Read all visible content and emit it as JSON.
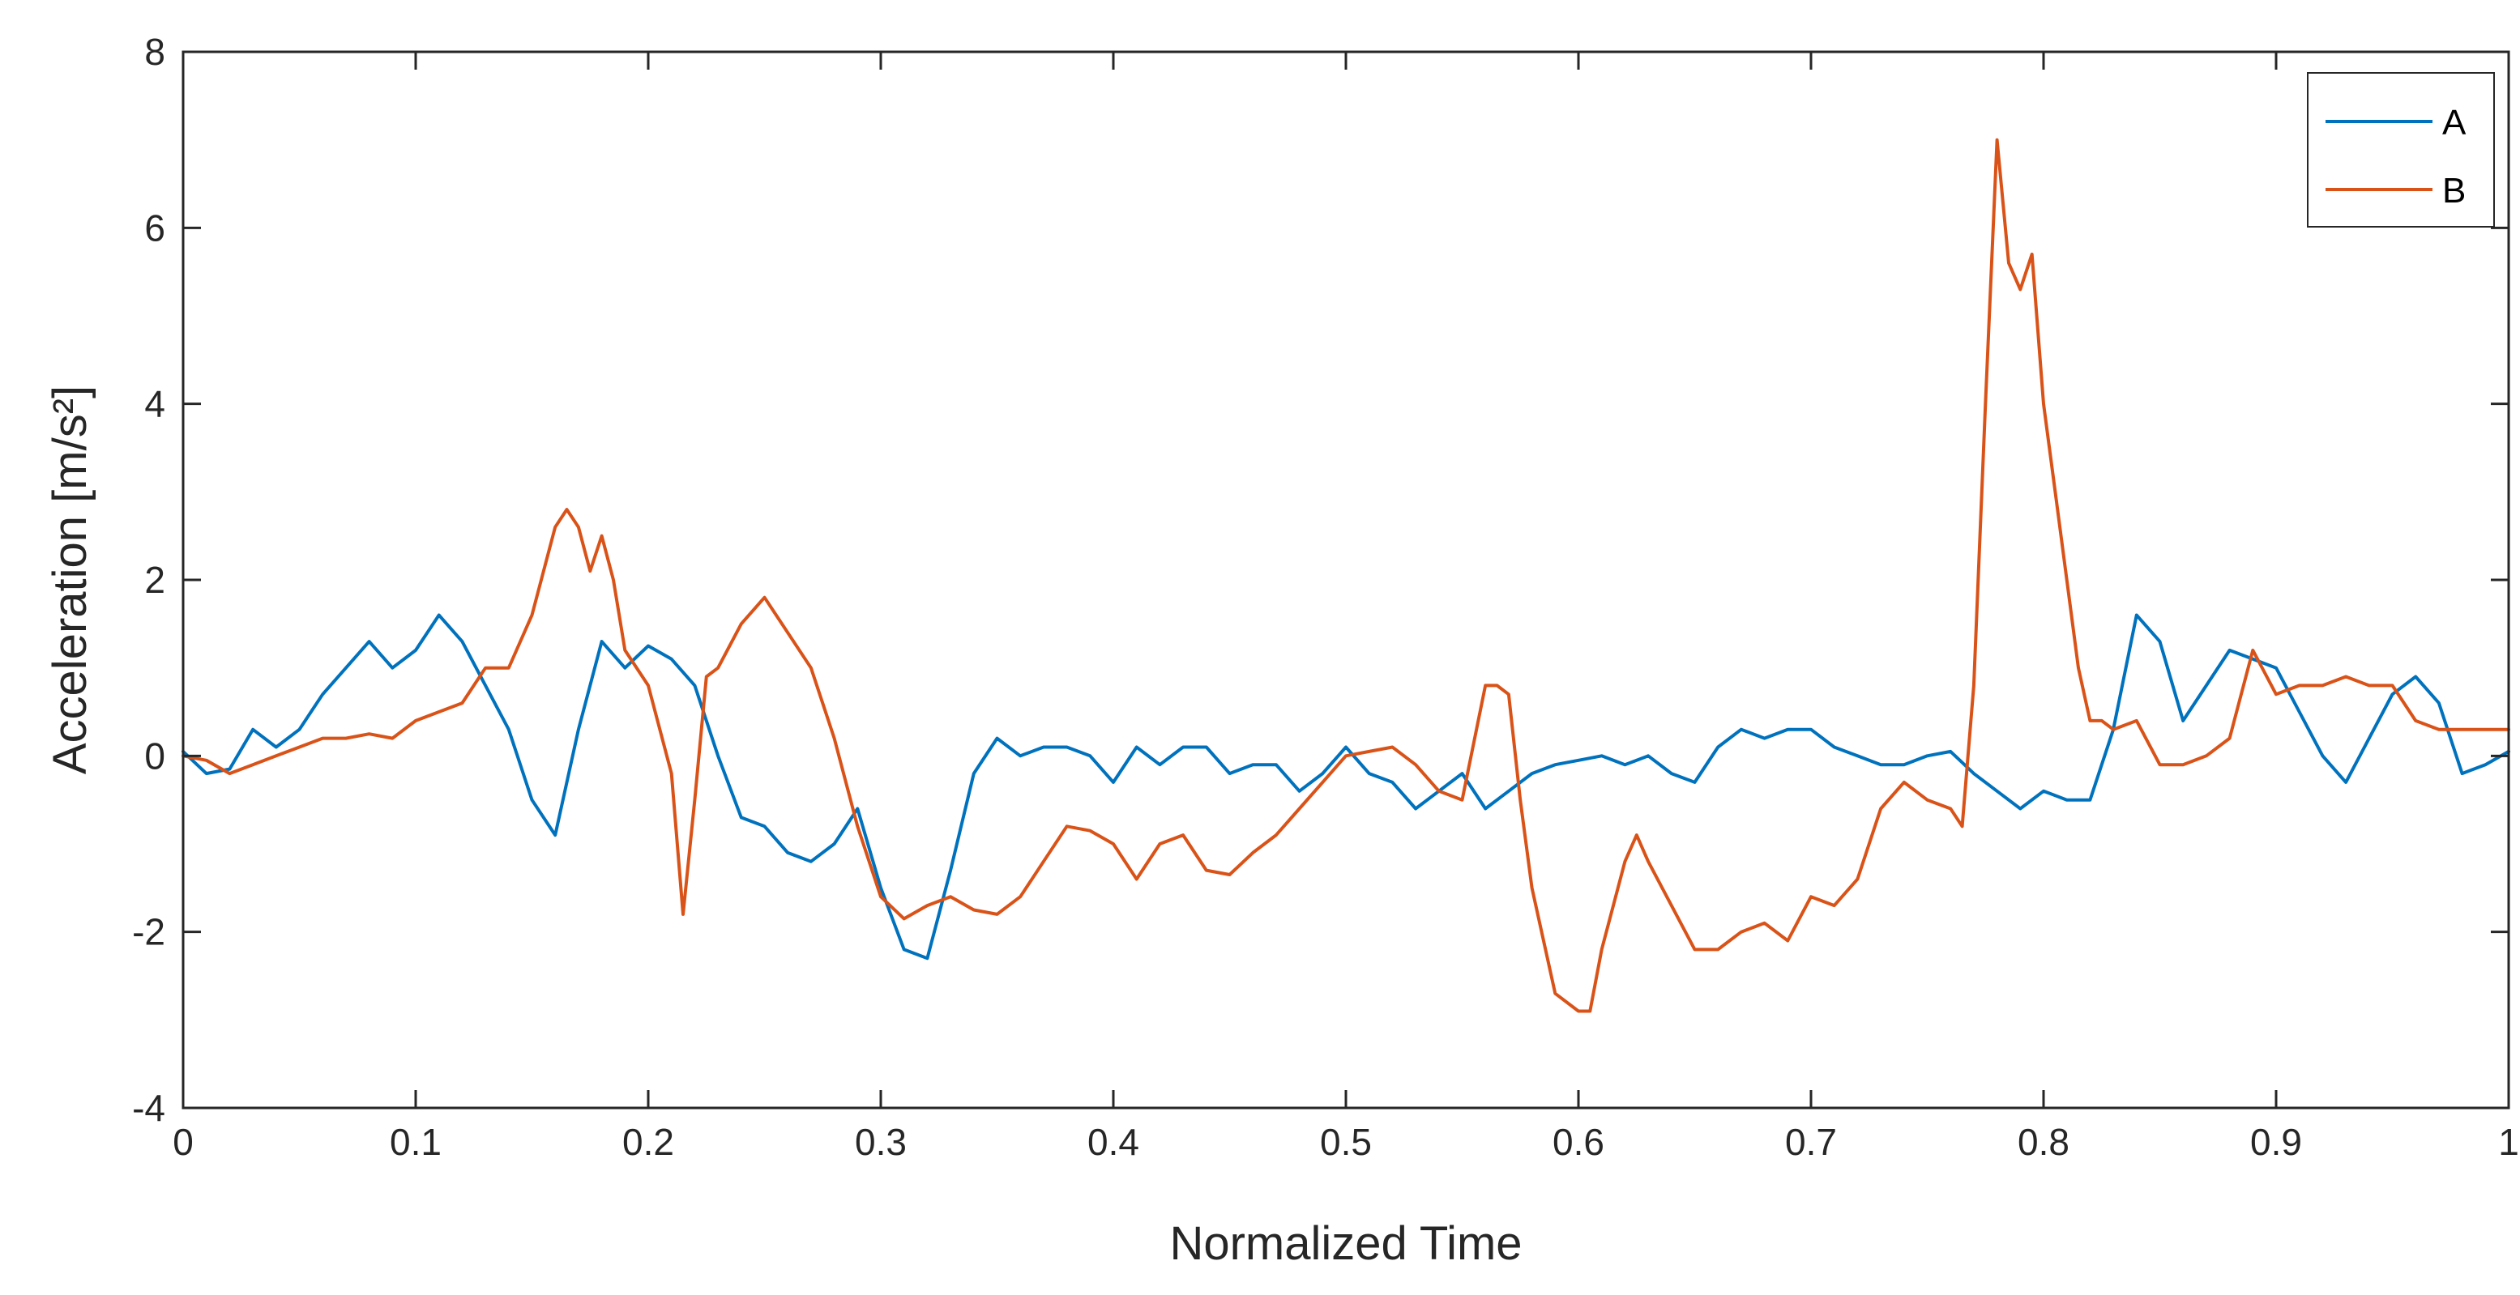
{
  "chart_data": {
    "type": "line",
    "title": "",
    "xlabel": "Normalized Time",
    "ylabel": "Acceleration [m/s²]",
    "xlim": [
      0,
      1
    ],
    "ylim": [
      -4,
      8
    ],
    "xticks": [
      "0",
      "0.1",
      "0.2",
      "0.3",
      "0.4",
      "0.5",
      "0.6",
      "0.7",
      "0.8",
      "0.9",
      "1"
    ],
    "yticks": [
      "-4",
      "-2",
      "0",
      "2",
      "4",
      "6",
      "8"
    ],
    "grid": false,
    "legend_position": "top-right",
    "series": [
      {
        "name": "A",
        "color": "#0072BD",
        "x": [
          0,
          0.01,
          0.02,
          0.03,
          0.04,
          0.05,
          0.06,
          0.07,
          0.08,
          0.09,
          0.1,
          0.11,
          0.12,
          0.13,
          0.14,
          0.15,
          0.16,
          0.17,
          0.18,
          0.19,
          0.2,
          0.21,
          0.22,
          0.23,
          0.24,
          0.25,
          0.26,
          0.27,
          0.28,
          0.29,
          0.3,
          0.31,
          0.32,
          0.33,
          0.34,
          0.35,
          0.36,
          0.37,
          0.38,
          0.39,
          0.4,
          0.41,
          0.42,
          0.43,
          0.44,
          0.45,
          0.46,
          0.47,
          0.48,
          0.49,
          0.5,
          0.51,
          0.52,
          0.53,
          0.54,
          0.55,
          0.56,
          0.57,
          0.58,
          0.59,
          0.6,
          0.61,
          0.62,
          0.63,
          0.64,
          0.65,
          0.66,
          0.67,
          0.68,
          0.69,
          0.7,
          0.71,
          0.72,
          0.73,
          0.74,
          0.75,
          0.76,
          0.77,
          0.78,
          0.79,
          0.8,
          0.81,
          0.82,
          0.83,
          0.84,
          0.85,
          0.86,
          0.87,
          0.88,
          0.89,
          0.9,
          0.91,
          0.92,
          0.93,
          0.94,
          0.95,
          0.96,
          0.97,
          0.98,
          0.99,
          1.0
        ],
        "values": [
          0.05,
          -0.2,
          -0.15,
          0.3,
          0.1,
          0.3,
          0.7,
          1.0,
          1.3,
          1.0,
          1.2,
          1.6,
          1.3,
          0.8,
          0.3,
          -0.5,
          -0.9,
          0.3,
          1.3,
          1.0,
          1.25,
          1.1,
          0.8,
          0.0,
          -0.7,
          -0.8,
          -1.1,
          -1.2,
          -1.0,
          -0.6,
          -1.5,
          -2.2,
          -2.3,
          -1.3,
          -0.2,
          0.2,
          0.0,
          0.1,
          0.1,
          0.0,
          -0.3,
          0.1,
          -0.1,
          0.1,
          0.1,
          -0.2,
          -0.1,
          -0.1,
          -0.4,
          -0.2,
          0.1,
          -0.2,
          -0.3,
          -0.6,
          -0.4,
          -0.2,
          -0.6,
          -0.4,
          -0.2,
          -0.1,
          -0.05,
          0.0,
          -0.1,
          0.0,
          -0.2,
          -0.3,
          0.1,
          0.3,
          0.2,
          0.3,
          0.3,
          0.1,
          0.0,
          -0.1,
          -0.1,
          0.0,
          0.05,
          -0.2,
          -0.4,
          -0.6,
          -0.4,
          -0.5,
          -0.5,
          0.3,
          1.6,
          1.3,
          0.4,
          0.8,
          1.2,
          1.1,
          1.0,
          0.5,
          0.0,
          -0.3,
          0.2,
          0.7,
          0.9,
          0.6,
          -0.2,
          -0.1,
          0.05
        ]
      },
      {
        "name": "B",
        "color": "#D95319",
        "x": [
          0,
          0.01,
          0.02,
          0.03,
          0.04,
          0.05,
          0.06,
          0.07,
          0.08,
          0.09,
          0.1,
          0.11,
          0.12,
          0.13,
          0.14,
          0.15,
          0.16,
          0.165,
          0.17,
          0.175,
          0.18,
          0.185,
          0.19,
          0.2,
          0.21,
          0.215,
          0.22,
          0.225,
          0.23,
          0.24,
          0.25,
          0.26,
          0.27,
          0.28,
          0.29,
          0.3,
          0.31,
          0.32,
          0.33,
          0.34,
          0.35,
          0.36,
          0.37,
          0.38,
          0.39,
          0.4,
          0.41,
          0.42,
          0.43,
          0.44,
          0.45,
          0.46,
          0.47,
          0.48,
          0.49,
          0.5,
          0.51,
          0.52,
          0.53,
          0.54,
          0.55,
          0.56,
          0.565,
          0.57,
          0.575,
          0.58,
          0.59,
          0.6,
          0.605,
          0.61,
          0.62,
          0.625,
          0.63,
          0.64,
          0.65,
          0.66,
          0.67,
          0.68,
          0.69,
          0.7,
          0.71,
          0.72,
          0.73,
          0.74,
          0.75,
          0.76,
          0.765,
          0.77,
          0.775,
          0.78,
          0.785,
          0.79,
          0.795,
          0.8,
          0.805,
          0.81,
          0.815,
          0.82,
          0.825,
          0.83,
          0.84,
          0.85,
          0.86,
          0.87,
          0.88,
          0.89,
          0.9,
          0.91,
          0.92,
          0.93,
          0.94,
          0.95,
          0.96,
          0.97,
          0.98,
          0.99,
          1.0
        ],
        "values": [
          0.0,
          -0.05,
          -0.2,
          -0.1,
          0.0,
          0.1,
          0.2,
          0.2,
          0.25,
          0.2,
          0.4,
          0.5,
          0.6,
          1.0,
          1.0,
          1.6,
          2.6,
          2.8,
          2.6,
          2.1,
          2.5,
          2.0,
          1.2,
          0.8,
          -0.2,
          -1.8,
          -0.5,
          0.9,
          1.0,
          1.5,
          1.8,
          1.4,
          1.0,
          0.2,
          -0.8,
          -1.6,
          -1.85,
          -1.7,
          -1.6,
          -1.75,
          -1.8,
          -1.6,
          -1.2,
          -0.8,
          -0.85,
          -1.0,
          -1.4,
          -1.0,
          -0.9,
          -1.3,
          -1.35,
          -1.1,
          -0.9,
          -0.6,
          -0.3,
          0.0,
          0.05,
          0.1,
          -0.1,
          -0.4,
          -0.5,
          0.8,
          0.8,
          0.7,
          -0.5,
          -1.5,
          -2.7,
          -2.9,
          -2.9,
          -2.2,
          -1.2,
          -0.9,
          -1.2,
          -1.7,
          -2.2,
          -2.2,
          -2.0,
          -1.9,
          -2.1,
          -1.6,
          -1.7,
          -1.4,
          -0.6,
          -0.3,
          -0.5,
          -0.6,
          -0.8,
          0.8,
          4.0,
          7.0,
          5.6,
          5.3,
          5.7,
          4.0,
          3.0,
          2.0,
          1.0,
          0.4,
          0.4,
          0.3,
          0.4,
          -0.1,
          -0.1,
          0.0,
          0.2,
          1.2,
          0.7,
          0.8,
          0.8,
          0.9,
          0.8,
          0.8,
          0.4,
          0.3,
          0.3,
          0.3,
          0.3
        ]
      }
    ]
  }
}
